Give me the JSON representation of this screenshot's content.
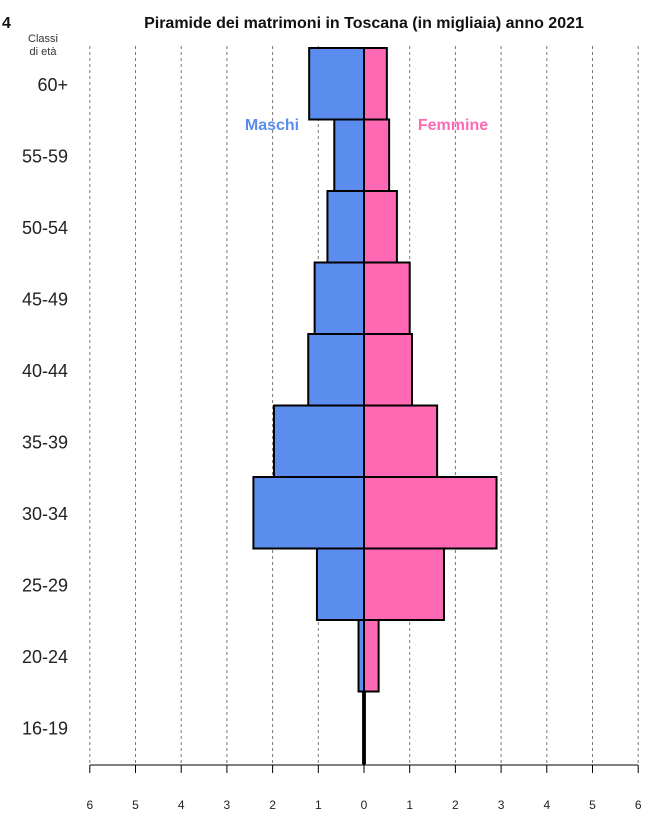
{
  "corner_mark": "4",
  "age_header": [
    "Classi",
    "di età"
  ],
  "chart_data": {
    "type": "bar",
    "title": "Piramide dei matrimoni in Toscana (in migliaia) anno 2021",
    "categories": [
      "16-19",
      "20-24",
      "25-29",
      "30-34",
      "35-39",
      "40-44",
      "45-49",
      "50-54",
      "55-59",
      "60+"
    ],
    "series": [
      {
        "name": "Maschi",
        "color": "#5b8def",
        "values": [
          0.02,
          0.12,
          1.03,
          2.42,
          1.97,
          1.22,
          1.08,
          0.8,
          0.65,
          1.2
        ]
      },
      {
        "name": "Femmine",
        "color": "#ff69b4",
        "values": [
          0.02,
          0.32,
          1.75,
          2.9,
          1.6,
          1.05,
          1.0,
          0.72,
          0.55,
          0.5
        ]
      }
    ],
    "xlim": [
      -6,
      6
    ],
    "x_ticks": [
      -6,
      -5,
      -4,
      -3,
      -2,
      -1,
      0,
      1,
      2,
      3,
      4,
      5,
      6
    ],
    "x_tick_labels": [
      "6",
      "5",
      "4",
      "3",
      "2",
      "1",
      "0",
      "1",
      "2",
      "3",
      "4",
      "5",
      "6"
    ],
    "grid": "vertical dashed",
    "legend": [
      "Maschi",
      "Femmine"
    ]
  }
}
